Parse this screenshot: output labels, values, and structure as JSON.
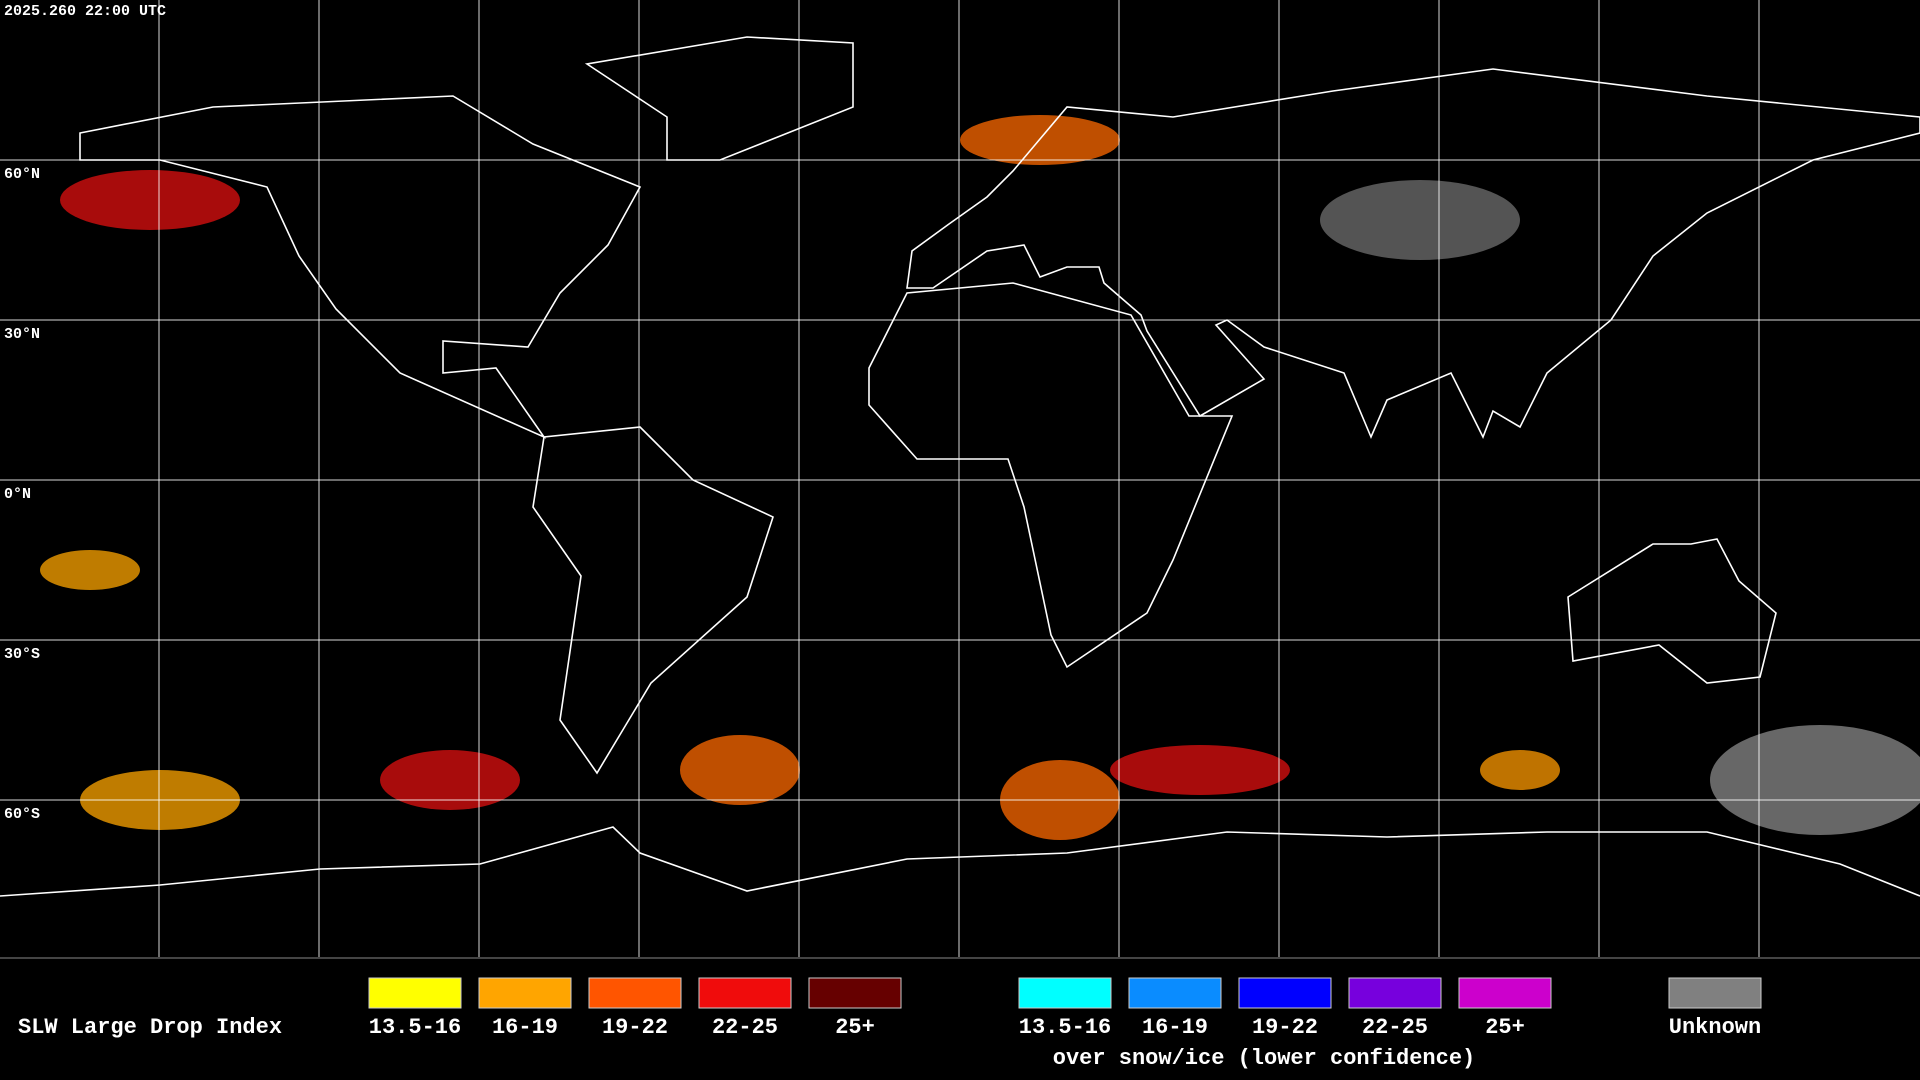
{
  "header": {
    "timestamp": "2025.260 22:00 UTC"
  },
  "map": {
    "latitude_labels": [
      "60°N",
      "30°N",
      "0°N",
      "30°S",
      "60°S"
    ]
  },
  "legend": {
    "title": "SLW Large Drop Index",
    "groups": [
      {
        "items": [
          {
            "label": "13.5-16",
            "color": "#ffff00"
          },
          {
            "label": "16-19",
            "color": "#ffa500"
          },
          {
            "label": "19-22",
            "color": "#ff5500"
          },
          {
            "label": "22-25",
            "color": "#f00c0c"
          },
          {
            "label": "25+",
            "color": "#660000"
          }
        ]
      },
      {
        "items": [
          {
            "label": "13.5-16",
            "color": "#00ffff"
          },
          {
            "label": "16-19",
            "color": "#0a8cff"
          },
          {
            "label": "19-22",
            "color": "#0000ff"
          },
          {
            "label": "22-25",
            "color": "#7700dd"
          },
          {
            "label": "25+",
            "color": "#cc00cc"
          }
        ],
        "note": "over snow/ice (lower confidence)"
      }
    ],
    "unknown": {
      "label": "Unknown",
      "color": "#808080"
    }
  }
}
